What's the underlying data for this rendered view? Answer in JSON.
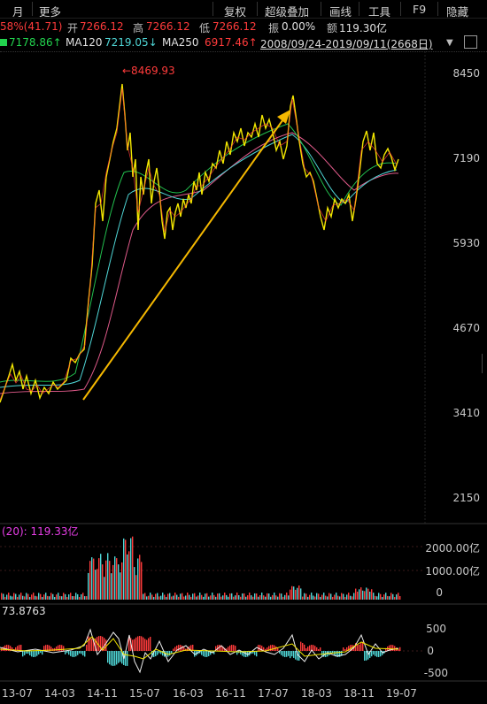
{
  "toolbar": {
    "period_label": "月",
    "more_label": "更多",
    "restore_label": "复权",
    "overlay_label": "超级叠加",
    "draw_label": "画线",
    "tools_label": "工具",
    "f9_label": "F9",
    "hide_label": "隐藏"
  },
  "stats": {
    "change": "58%(41.71)",
    "open_label": "开",
    "open": "7266.12",
    "high_label": "高",
    "high": "7266.12",
    "low_label": "低",
    "low": "7266.12",
    "amp_label": "振",
    "amp": "0.00%",
    "amount_label": "额",
    "amount": "119.30亿"
  },
  "ma": {
    "ma60_val": "7178.86↑",
    "ma120_label": "MA120",
    "ma120_val": "7219.05↓",
    "ma250_label": "MA250",
    "ma250_val": "6917.46↑",
    "range": "2008/09/24-2019/09/11(2668日)"
  },
  "price_axis": [
    "8450",
    "7190",
    "5930",
    "4670",
    "3410",
    "2150"
  ],
  "peak_annotation": "←8469.93",
  "volume": {
    "label": "(20): 119.33亿",
    "axis": [
      "2000.00亿",
      "1000.00亿",
      "0"
    ]
  },
  "indicator": {
    "label": "73.8763",
    "axis": [
      "500",
      "0",
      "-500"
    ]
  },
  "x_axis": [
    "13-07",
    "14-03",
    "14-11",
    "15-07",
    "16-03",
    "16-11",
    "17-07",
    "18-03",
    "18-11",
    "19-07"
  ],
  "colors": {
    "up": "#ff3b3b",
    "down": "#4fd6d6",
    "trend_arrow": "#f5b800",
    "price_line": "#f2e600",
    "ma_cyan": "#4fd6d6",
    "ma_green": "#22c04e",
    "ma_pink": "#e05a8a"
  }
}
